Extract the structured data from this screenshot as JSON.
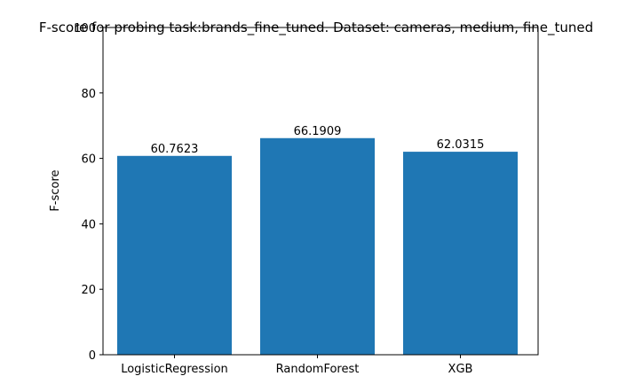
{
  "chart_data": {
    "type": "bar",
    "title": "F-score for probing task:brands_fine_tuned. Dataset: cameras, medium, fine_tuned",
    "xlabel": "",
    "ylabel": "F-score",
    "categories": [
      "LogisticRegression",
      "RandomForest",
      "XGB"
    ],
    "values": [
      60.7623,
      66.1909,
      62.0315
    ],
    "value_labels": [
      "60.7623",
      "66.1909",
      "62.0315"
    ],
    "ylim": [
      0,
      100
    ],
    "yticks": [
      0,
      20,
      40,
      60,
      80,
      100
    ],
    "grid": false,
    "legend": "none",
    "bar_color": "#1f77b4"
  }
}
